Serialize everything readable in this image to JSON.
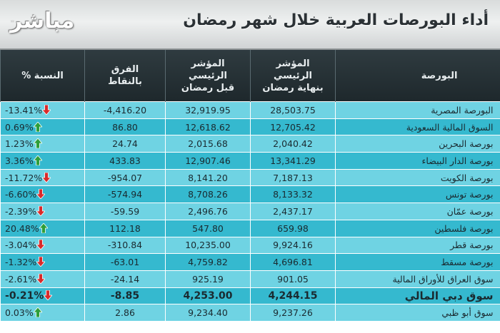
{
  "header": {
    "logo": "مباشر",
    "logo_tm": "™",
    "title": "أداء البورصات العربية خلال شهر رمضان"
  },
  "table": {
    "columns": {
      "market": "البورصة",
      "end_index_line1": "المؤشر",
      "end_index_line2": "الرئيسي",
      "end_index_line3": "بنهاية رمضان",
      "start_index_line1": "المؤشر",
      "start_index_line2": "الرئيسي",
      "start_index_line3": "قبل رمضان",
      "diff_line1": "الفرق",
      "diff_line2": "بالنقاط",
      "pct": "النسبة %"
    },
    "colors": {
      "up": "#2e9e3a",
      "down": "#d92a2a",
      "row_light": "#6fd3e3",
      "row_dark": "#35b9cf"
    },
    "rows": [
      {
        "market": "البورصة المصرية",
        "end": "28,503.75",
        "start": "32,919.95",
        "diff": "4,416.20-",
        "pct": "13.41%-",
        "dir": "down"
      },
      {
        "market": "السوق المالية السعودية",
        "end": "12,705.42",
        "start": "12,618.62",
        "diff": "86.80",
        "pct": "0.69%",
        "dir": "up"
      },
      {
        "market": "بورصة البحرين",
        "end": "2,040.42",
        "start": "2,015.68",
        "diff": "24.74",
        "pct": "1.23%",
        "dir": "up"
      },
      {
        "market": "بورصة الدار البيضاء",
        "end": "13,341.29",
        "start": "12,907.46",
        "diff": "433.83",
        "pct": "3.36%",
        "dir": "up"
      },
      {
        "market": "بورصة الكويت",
        "end": "7,187.13",
        "start": "8,141.20",
        "diff": "954.07-",
        "pct": "11.72%-",
        "dir": "down"
      },
      {
        "market": "بورصة تونس",
        "end": "8,133.32",
        "start": "8,708.26",
        "diff": "574.94-",
        "pct": "6.60%-",
        "dir": "down"
      },
      {
        "market": "بورصة عمّان",
        "end": "2,437.17",
        "start": "2,496.76",
        "diff": "59.59-",
        "pct": "2.39%-",
        "dir": "down"
      },
      {
        "market": "بورصة فلسطين",
        "end": "659.98",
        "start": "547.80",
        "diff": "112.18",
        "pct": "20.48%",
        "dir": "up"
      },
      {
        "market": "بورصة قطر",
        "end": "9,924.16",
        "start": "10,235.00",
        "diff": "310.84-",
        "pct": "3.04%-",
        "dir": "down"
      },
      {
        "market": "بورصة مسقط",
        "end": "4,696.81",
        "start": "4,759.82",
        "diff": "63.01-",
        "pct": "1.32%-",
        "dir": "down"
      },
      {
        "market": "سوق العراق للأوراق المالية",
        "end": "901.05",
        "start": "925.19",
        "diff": "24.14-",
        "pct": "2.61%-",
        "dir": "down"
      },
      {
        "market": "سوق دبي المالي",
        "end": "4,244.15",
        "start": "4,253.00",
        "diff": "8.85-",
        "pct": "0.21%-",
        "dir": "down",
        "bold": true
      },
      {
        "market": "سوق أبو ظبي",
        "end": "9,237.26",
        "start": "9,234.40",
        "diff": "2.86",
        "pct": "0.03%",
        "dir": "up"
      }
    ]
  }
}
